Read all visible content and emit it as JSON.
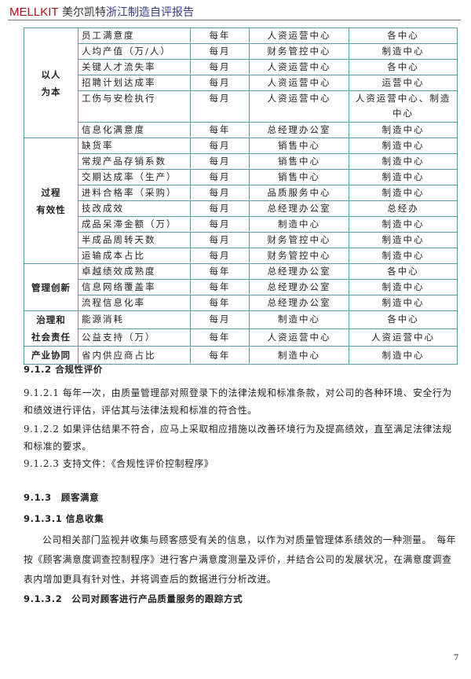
{
  "header": {
    "brand": "MELLKIT",
    "title_a": "美尔凯特",
    "title_b": "浙江制造自评报告"
  },
  "table": {
    "groups": [
      {
        "name": "以人为本",
        "line1": "以人",
        "line2": "为本",
        "rows": [
          [
            "员工满意度",
            "每年",
            "人资运营中心",
            "各中心"
          ],
          [
            "人均产值（万/人）",
            "每月",
            "财务管控中心",
            "制造中心"
          ],
          [
            "关键人才流失率",
            "每月",
            "人资运营中心",
            "各中心"
          ],
          [
            "招聘计划达成率",
            "每月",
            "人资运营中心",
            "运营中心"
          ],
          [
            "工伤与安检执行",
            "每月",
            "人资运营中心",
            "人资运营中心、制造中心"
          ],
          [
            "信息化满意度",
            "每年",
            "总经理办公室",
            "制造中心"
          ]
        ]
      },
      {
        "name": "过程有效性",
        "line1": "过程",
        "line2": "有效性",
        "rows": [
          [
            "缺货率",
            "每月",
            "销售中心",
            "制造中心"
          ],
          [
            "常规产品存销系数",
            "每月",
            "销售中心",
            "制造中心"
          ],
          [
            "交期达成率（生产）",
            "每月",
            "销售中心",
            "制造中心"
          ],
          [
            "进料合格率（采购）",
            "每月",
            "品质服务中心",
            "制造中心"
          ],
          [
            "技改成效",
            "每月",
            "总经理办公室",
            "总经办"
          ],
          [
            "成品呆滞金额（万）",
            "每月",
            "制造中心",
            "制造中心"
          ],
          [
            "半成品周转天数",
            "每月",
            "财务管控中心",
            "制造中心"
          ],
          [
            "运输成本占比",
            "每月",
            "财务管控中心",
            "制造中心"
          ]
        ]
      },
      {
        "name": "管理创新",
        "line1": "管理创新",
        "line2": "",
        "rows": [
          [
            "卓越绩效成熟度",
            "每年",
            "总经理办公室",
            "各中心"
          ],
          [
            "信息网络覆盖率",
            "每年",
            "总经理办公室",
            "制造中心"
          ],
          [
            "流程信息化率",
            "每年",
            "总经理办公室",
            "制造中心"
          ]
        ]
      },
      {
        "name": "治理和社会责任",
        "line1": "治理和",
        "line2": "社会责任",
        "rows": [
          [
            "能源消耗",
            "每月",
            "制造中心",
            "各中心"
          ],
          [
            "公益支持（万）",
            "每年",
            "人资运营中心",
            "人资运营中心"
          ]
        ]
      },
      {
        "name": "产业协同",
        "line1": "产业协同",
        "line2": "",
        "rows": [
          [
            "省内供应商占比",
            "每年",
            "制造中心",
            "制造中心"
          ]
        ]
      }
    ]
  },
  "body": {
    "h912": "9.1.2 合规性评价",
    "p9121": "9.1.2.1 每年一次，由质量管理部对照登录下的法律法规和标准条款，对公司的各种环境、安全行为和绩效进行评估，评估其与法律法规和标准的符合性。",
    "p9122": "9.1.2.2 如果评估结果不符合，应马上采取相应措施以改善环境行为及提高绩效，直至满足法律法规和标准的要求。",
    "p9123": "9.1.2.3 支持文件：《合规性评价控制程序》",
    "h913": "9.1.3　顾客满意",
    "h9131": "9.1.3.1 信息收集",
    "p9131": "公司相关部门监视并收集与顾客感受有关的信息，以作为对质量管理体系绩效的一种测量。　每年按《顾客满意度调查控制程序》进行客户满意度测量及评价，并结合公司的发展状况，在满意度调查表内增加更具有针对性，并将调查后的数据进行分析改进。",
    "h9132": "9.1.3.2　公司对顾客进行产品质量服务的跟踪方式"
  },
  "page_number": "7"
}
